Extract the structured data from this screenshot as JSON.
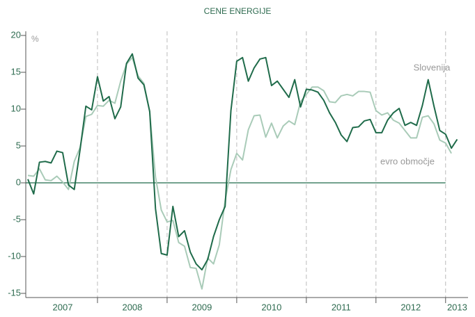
{
  "chart_data": {
    "type": "line",
    "title": "CENE ENERGIJE",
    "y_unit": "%",
    "categories": [
      null,
      null,
      null,
      null,
      null,
      null,
      "2007",
      null,
      null,
      null,
      null,
      null,
      null,
      null,
      null,
      null,
      null,
      null,
      "2008",
      null,
      null,
      null,
      null,
      null,
      null,
      null,
      null,
      null,
      null,
      null,
      "2009",
      null,
      null,
      null,
      null,
      null,
      null,
      null,
      null,
      null,
      null,
      null,
      "2010",
      null,
      null,
      null,
      null,
      null,
      null,
      null,
      null,
      null,
      null,
      null,
      "2011",
      null,
      null,
      null,
      null,
      null,
      null,
      null,
      null,
      null,
      null,
      null,
      "2012",
      null,
      null,
      null,
      null,
      null,
      null,
      null,
      "2013"
    ],
    "series": [
      {
        "name": "Slovenija",
        "color": "#1f6b4a",
        "values": [
          0.5,
          -1.5,
          2.8,
          2.9,
          2.7,
          4.3,
          4.1,
          -0.3,
          -0.9,
          4.5,
          10.4,
          9.9,
          14.4,
          11.1,
          11.7,
          8.7,
          10.3,
          16.2,
          17.5,
          14.2,
          13.3,
          9.7,
          -3.5,
          -9.6,
          -9.8,
          -3.2,
          -7.3,
          -6.5,
          -9.4,
          -11.0,
          -11.8,
          -10.4,
          -7.3,
          -5.0,
          -3.2,
          9.8,
          16.5,
          17.0,
          13.8,
          15.6,
          16.8,
          17.0,
          13.2,
          13.8,
          12.7,
          11.6,
          14.0,
          10.3,
          12.7,
          12.6,
          12.3,
          11.2,
          9.5,
          8.2,
          6.5,
          5.6,
          7.5,
          7.6,
          8.4,
          8.6,
          6.8,
          6.8,
          8.5,
          9.5,
          10.1,
          7.8,
          8.2,
          7.8,
          10.5,
          14.0,
          10.4,
          7.1,
          6.6,
          4.7,
          5.9
        ]
      },
      {
        "name": "evro območje",
        "color": "#a9cbb8",
        "values": [
          1.0,
          0.9,
          1.9,
          0.4,
          0.3,
          0.9,
          0.1,
          -0.9,
          2.9,
          4.8,
          9.0,
          9.3,
          10.5,
          10.4,
          11.2,
          10.8,
          13.8,
          16.1,
          17.0,
          14.5,
          13.5,
          9.6,
          0.8,
          -3.7,
          -5.3,
          -5.1,
          -8.1,
          -8.6,
          -11.5,
          -11.6,
          -14.4,
          -10.2,
          -11.0,
          -8.4,
          -2.4,
          1.8,
          4.0,
          3.1,
          7.2,
          9.1,
          9.2,
          6.2,
          8.1,
          6.1,
          7.7,
          8.4,
          7.9,
          11.0,
          12.0,
          13.0,
          13.0,
          12.5,
          11.0,
          10.9,
          11.8,
          12.0,
          11.8,
          12.4,
          12.4,
          12.3,
          9.8,
          9.2,
          9.5,
          8.5,
          8.1,
          7.1,
          6.1,
          6.1,
          8.9,
          9.1,
          8.0,
          5.8,
          5.4,
          4.0,
          null
        ]
      }
    ],
    "ylim": [
      -15,
      20
    ],
    "yticks": [
      -15,
      -10,
      -5,
      0,
      5,
      10,
      15,
      20
    ]
  }
}
